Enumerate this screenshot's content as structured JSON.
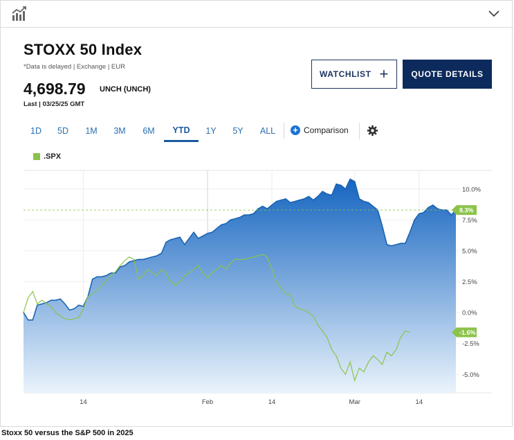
{
  "header": {
    "chart_icon": "line-chart-icon",
    "expand_icon": "chevron-down-icon"
  },
  "quote": {
    "title": "STOXX 50 Index",
    "meta": "*Data is delayed | Exchange | EUR",
    "price": "4,698.79",
    "change": "UNCH (UNCH)",
    "last": "Last | 03/25/25 GMT"
  },
  "buttons": {
    "watchlist": "WATCHLIST",
    "quote_details": "QUOTE DETAILS"
  },
  "range_tabs": [
    {
      "label": "1D",
      "active": false
    },
    {
      "label": "5D",
      "active": false
    },
    {
      "label": "1M",
      "active": false
    },
    {
      "label": "3M",
      "active": false
    },
    {
      "label": "6M",
      "active": false
    },
    {
      "label": "YTD",
      "active": true
    },
    {
      "label": "1Y",
      "active": false
    },
    {
      "label": "5Y",
      "active": false
    },
    {
      "label": "ALL",
      "active": false
    }
  ],
  "comparison_label": "Comparison",
  "settings_icon": "gear-icon",
  "caption": "Stoxx 50 versus the S&P 500 in 2025",
  "colors": {
    "area_top": "#1565c0",
    "area_bottom": "#eaf3fc",
    "line": "#1b63b0",
    "spx": "#8bc34a",
    "tab": "#2a6eb0",
    "quote_button": "#0d2a5c"
  },
  "chart_data": {
    "type": "area",
    "ylim": [
      -6.5,
      11.5
    ],
    "y_ticks": [
      10,
      7.5,
      5,
      2.5,
      0,
      -2.5,
      -5
    ],
    "y_tick_labels": [
      "10.0%",
      "7.5%",
      "5.0%",
      "2.5%",
      "0.0%",
      "-2.5%",
      "-5.0%"
    ],
    "x_ticks": [
      {
        "day": 14,
        "label": "14"
      },
      {
        "day": 41,
        "label": "Feb"
      },
      {
        "day": 55,
        "label": "14"
      },
      {
        "day": 73,
        "label": "Mar"
      },
      {
        "day": 87,
        "label": "14"
      }
    ],
    "xlim": [
      1,
      95
    ],
    "grid": true,
    "legend": "top-left",
    "reference_value": 8.3,
    "series": [
      {
        "name": "",
        "role": "primary-area",
        "points": [
          [
            1,
            0
          ],
          [
            2,
            -0.6
          ],
          [
            3,
            -0.6
          ],
          [
            4,
            0.6
          ],
          [
            5,
            0.7
          ],
          [
            6,
            0.8
          ],
          [
            7,
            1.0
          ],
          [
            8,
            1.0
          ],
          [
            9,
            1.1
          ],
          [
            10,
            0.7
          ],
          [
            11,
            0.2
          ],
          [
            12,
            0.3
          ],
          [
            13,
            0.6
          ],
          [
            14,
            0.5
          ],
          [
            15,
            1.3
          ],
          [
            16,
            2.7
          ],
          [
            17,
            2.9
          ],
          [
            18,
            2.9
          ],
          [
            19,
            3.0
          ],
          [
            20,
            3.2
          ],
          [
            21,
            3.2
          ],
          [
            22,
            3.7
          ],
          [
            23,
            3.8
          ],
          [
            24,
            4.1
          ],
          [
            25,
            4.2
          ],
          [
            26,
            4.3
          ],
          [
            27,
            4.3
          ],
          [
            28,
            4.4
          ],
          [
            29,
            4.5
          ],
          [
            30,
            4.6
          ],
          [
            31,
            4.8
          ],
          [
            32,
            5.7
          ],
          [
            33,
            5.9
          ],
          [
            34,
            6.0
          ],
          [
            35,
            6.1
          ],
          [
            36,
            5.5
          ],
          [
            37,
            6.0
          ],
          [
            38,
            6.5
          ],
          [
            39,
            6.0
          ],
          [
            40,
            6.2
          ],
          [
            41,
            6.4
          ],
          [
            42,
            6.5
          ],
          [
            43,
            6.8
          ],
          [
            44,
            7.1
          ],
          [
            45,
            7.2
          ],
          [
            46,
            7.5
          ],
          [
            47,
            7.6
          ],
          [
            48,
            7.7
          ],
          [
            49,
            7.9
          ],
          [
            50,
            7.9
          ],
          [
            51,
            8.0
          ],
          [
            52,
            8.4
          ],
          [
            53,
            8.6
          ],
          [
            54,
            8.4
          ],
          [
            55,
            8.7
          ],
          [
            56,
            9.0
          ],
          [
            57,
            9.1
          ],
          [
            58,
            9.2
          ],
          [
            59,
            8.9
          ],
          [
            60,
            9.0
          ],
          [
            61,
            9.1
          ],
          [
            62,
            9.2
          ],
          [
            63,
            9.4
          ],
          [
            64,
            9.1
          ],
          [
            65,
            9.4
          ],
          [
            66,
            9.8
          ],
          [
            67,
            9.6
          ],
          [
            68,
            9.5
          ],
          [
            69,
            10.4
          ],
          [
            70,
            10.3
          ],
          [
            71,
            10.0
          ],
          [
            72,
            10.8
          ],
          [
            73,
            10.6
          ],
          [
            74,
            9.2
          ],
          [
            75,
            9.0
          ],
          [
            76,
            8.9
          ],
          [
            77,
            8.6
          ],
          [
            78,
            8.3
          ],
          [
            79,
            7.0
          ],
          [
            80,
            5.5
          ],
          [
            81,
            5.4
          ],
          [
            82,
            5.5
          ],
          [
            83,
            5.6
          ],
          [
            84,
            5.6
          ],
          [
            85,
            6.5
          ],
          [
            86,
            7.5
          ],
          [
            87,
            8.0
          ],
          [
            88,
            8.1
          ],
          [
            89,
            8.5
          ],
          [
            90,
            8.7
          ],
          [
            91,
            8.4
          ],
          [
            92,
            8.3
          ],
          [
            93,
            8.3
          ],
          [
            94,
            7.9
          ],
          [
            95,
            8.3
          ]
        ]
      },
      {
        "name": ".SPX",
        "role": "comparison-line",
        "points": [
          [
            1,
            0
          ],
          [
            2,
            1.2
          ],
          [
            3,
            1.7
          ],
          [
            4,
            0.7
          ],
          [
            5,
            1.0
          ],
          [
            6,
            0.7
          ],
          [
            7,
            0.5
          ],
          [
            8,
            0.0
          ],
          [
            9,
            -0.3
          ],
          [
            10,
            -0.5
          ],
          [
            11,
            -0.6
          ],
          [
            12,
            -0.5
          ],
          [
            13,
            -0.4
          ],
          [
            14,
            0.3
          ],
          [
            15,
            1.3
          ],
          [
            16,
            1.5
          ],
          [
            17,
            1.8
          ],
          [
            18,
            2.2
          ],
          [
            19,
            2.6
          ],
          [
            20,
            3.0
          ],
          [
            21,
            3.3
          ],
          [
            22,
            3.8
          ],
          [
            23,
            4.2
          ],
          [
            24,
            4.5
          ],
          [
            25,
            4.3
          ],
          [
            26,
            2.7
          ],
          [
            27,
            3.0
          ],
          [
            28,
            3.5
          ],
          [
            29,
            3.2
          ],
          [
            30,
            3.0
          ],
          [
            31,
            3.5
          ],
          [
            32,
            3.2
          ],
          [
            33,
            2.5
          ],
          [
            34,
            2.2
          ],
          [
            35,
            2.5
          ],
          [
            36,
            3.0
          ],
          [
            37,
            3.2
          ],
          [
            38,
            3.5
          ],
          [
            39,
            3.8
          ],
          [
            40,
            3.2
          ],
          [
            41,
            2.8
          ],
          [
            42,
            3.2
          ],
          [
            43,
            3.5
          ],
          [
            44,
            3.8
          ],
          [
            45,
            3.5
          ],
          [
            46,
            4.0
          ],
          [
            47,
            4.3
          ],
          [
            48,
            4.3
          ],
          [
            49,
            4.3
          ],
          [
            50,
            4.4
          ],
          [
            51,
            4.5
          ],
          [
            52,
            4.6
          ],
          [
            53,
            4.7
          ],
          [
            54,
            4.5
          ],
          [
            55,
            3.5
          ],
          [
            56,
            2.5
          ],
          [
            57,
            2.0
          ],
          [
            58,
            1.5
          ],
          [
            59,
            1.5
          ],
          [
            60,
            0.5
          ],
          [
            61,
            0.3
          ],
          [
            62,
            0.2
          ],
          [
            63,
            0.0
          ],
          [
            64,
            -0.3
          ],
          [
            65,
            -1.0
          ],
          [
            66,
            -1.5
          ],
          [
            67,
            -2.0
          ],
          [
            68,
            -3.0
          ],
          [
            69,
            -3.5
          ],
          [
            70,
            -4.5
          ],
          [
            71,
            -5.0
          ],
          [
            72,
            -4.0
          ],
          [
            73,
            -5.5
          ],
          [
            74,
            -4.5
          ],
          [
            75,
            -4.8
          ],
          [
            76,
            -4.0
          ],
          [
            77,
            -3.5
          ],
          [
            78,
            -3.8
          ],
          [
            79,
            -4.2
          ],
          [
            80,
            -3.2
          ],
          [
            81,
            -3.5
          ],
          [
            82,
            -3.0
          ],
          [
            83,
            -2.0
          ],
          [
            84,
            -1.5
          ],
          [
            85,
            -1.6
          ]
        ],
        "last_label": "-1.6%"
      }
    ],
    "primary_last_label": "8.3%"
  }
}
